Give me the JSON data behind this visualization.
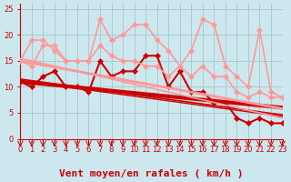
{
  "xlabel": "Vent moyen/en rafales ( km/h )",
  "bg_color": "#cce8ee",
  "grid_color": "#aacccc",
  "xlim": [
    0,
    23
  ],
  "ylim": [
    0,
    26
  ],
  "yticks": [
    0,
    5,
    10,
    15,
    20,
    25
  ],
  "xticks": [
    0,
    1,
    2,
    3,
    4,
    5,
    6,
    7,
    8,
    9,
    10,
    11,
    12,
    13,
    14,
    15,
    16,
    17,
    18,
    19,
    20,
    21,
    22,
    23
  ],
  "lines": [
    {
      "x": [
        0,
        1,
        2,
        3,
        4,
        5,
        6,
        7,
        8,
        9,
        10,
        11,
        12,
        13,
        14,
        15,
        16,
        17,
        18,
        19,
        20,
        21,
        22,
        23
      ],
      "y": [
        11,
        10,
        12,
        13,
        10,
        10,
        9,
        15,
        12,
        13,
        13,
        16,
        16,
        10,
        13,
        9,
        9,
        7,
        7,
        4,
        3,
        4,
        3,
        3
      ],
      "color": "#cc0000",
      "lw": 1.5,
      "marker": "D",
      "ms": 3
    },
    {
      "x": [
        0,
        1,
        2,
        3,
        4,
        5,
        6,
        7,
        8,
        9,
        10,
        11,
        12,
        13,
        14,
        15,
        16,
        17,
        18,
        19,
        20,
        21,
        22,
        23
      ],
      "y": [
        11.0,
        10.78,
        10.57,
        10.35,
        10.13,
        9.91,
        9.7,
        9.48,
        9.26,
        9.04,
        8.83,
        8.61,
        8.39,
        8.17,
        7.96,
        7.74,
        7.52,
        7.3,
        7.09,
        6.87,
        6.65,
        6.43,
        6.22,
        6.0
      ],
      "color": "#cc0000",
      "lw": 3.0,
      "marker": null,
      "ms": 0
    },
    {
      "x": [
        0,
        1,
        2,
        3,
        4,
        5,
        6,
        7,
        8,
        9,
        10,
        11,
        12,
        13,
        14,
        15,
        16,
        17,
        18,
        19,
        20,
        21,
        22,
        23
      ],
      "y": [
        11.5,
        11.2,
        10.9,
        10.6,
        10.3,
        10.0,
        9.7,
        9.4,
        9.1,
        8.8,
        8.5,
        8.2,
        7.9,
        7.6,
        7.3,
        7.0,
        6.7,
        6.4,
        6.1,
        5.8,
        5.5,
        5.2,
        4.9,
        4.6
      ],
      "color": "#cc0000",
      "lw": 1.2,
      "marker": null,
      "ms": 0
    },
    {
      "x": [
        0,
        1,
        2,
        3,
        4,
        5,
        6,
        7,
        8,
        9,
        10,
        11,
        12,
        13,
        14,
        15,
        16,
        17,
        18,
        19,
        20,
        21,
        22,
        23
      ],
      "y": [
        11.2,
        10.9,
        10.6,
        10.3,
        10.0,
        9.7,
        9.4,
        9.1,
        8.8,
        8.5,
        8.2,
        7.9,
        7.6,
        7.3,
        7.0,
        6.7,
        6.4,
        6.1,
        5.8,
        5.5,
        5.2,
        4.9,
        4.6,
        4.3
      ],
      "color": "#cc0000",
      "lw": 1.0,
      "marker": null,
      "ms": 0
    },
    {
      "x": [
        0,
        1,
        2,
        3,
        4,
        5,
        6,
        7,
        8,
        9,
        10,
        11,
        12,
        13,
        14,
        15,
        16,
        17,
        18,
        19,
        20,
        21,
        22,
        23
      ],
      "y": [
        15,
        14,
        18,
        18,
        15,
        15,
        15,
        18,
        16,
        15,
        15,
        14,
        14,
        12,
        14,
        12,
        14,
        12,
        12,
        9,
        8,
        9,
        8,
        8
      ],
      "color": "#ff9999",
      "lw": 1.2,
      "marker": "D",
      "ms": 3
    },
    {
      "x": [
        0,
        1,
        2,
        3,
        4,
        5,
        6,
        7,
        8,
        9,
        10,
        11,
        12,
        13,
        14,
        15,
        16,
        17,
        18,
        19,
        20,
        21,
        22,
        23
      ],
      "y": [
        15,
        19,
        19,
        17,
        15,
        15,
        15,
        23,
        19,
        20,
        22,
        22,
        19,
        17,
        14,
        17,
        23,
        22,
        14,
        12,
        10,
        21,
        9,
        8
      ],
      "color": "#ff9999",
      "lw": 1.2,
      "marker": "D",
      "ms": 3
    },
    {
      "x": [
        0,
        1,
        2,
        3,
        4,
        5,
        6,
        7,
        8,
        9,
        10,
        11,
        12,
        13,
        14,
        15,
        16,
        17,
        18,
        19,
        20,
        21,
        22,
        23
      ],
      "y": [
        15.0,
        14.6,
        14.2,
        13.8,
        13.4,
        13.0,
        12.6,
        12.2,
        11.8,
        11.4,
        11.0,
        10.6,
        10.2,
        9.8,
        9.4,
        9.0,
        8.6,
        8.2,
        7.8,
        7.4,
        7.0,
        6.6,
        6.2,
        5.8
      ],
      "color": "#ff9999",
      "lw": 2.0,
      "marker": null,
      "ms": 0
    },
    {
      "x": [
        0,
        1,
        2,
        3,
        4,
        5,
        6,
        7,
        8,
        9,
        10,
        11,
        12,
        13,
        14,
        15,
        16,
        17,
        18,
        19,
        20,
        21,
        22,
        23
      ],
      "y": [
        15.5,
        15.0,
        14.5,
        14.0,
        13.5,
        13.0,
        12.5,
        12.0,
        11.5,
        11.0,
        10.5,
        10.0,
        9.5,
        9.0,
        8.5,
        8.0,
        7.5,
        7.0,
        6.5,
        6.0,
        5.5,
        5.0,
        4.5,
        4.0
      ],
      "color": "#ff9999",
      "lw": 1.2,
      "marker": null,
      "ms": 0
    }
  ],
  "red_color": "#cc0000",
  "xlabel_fontsize": 8,
  "tick_fontsize": 6
}
